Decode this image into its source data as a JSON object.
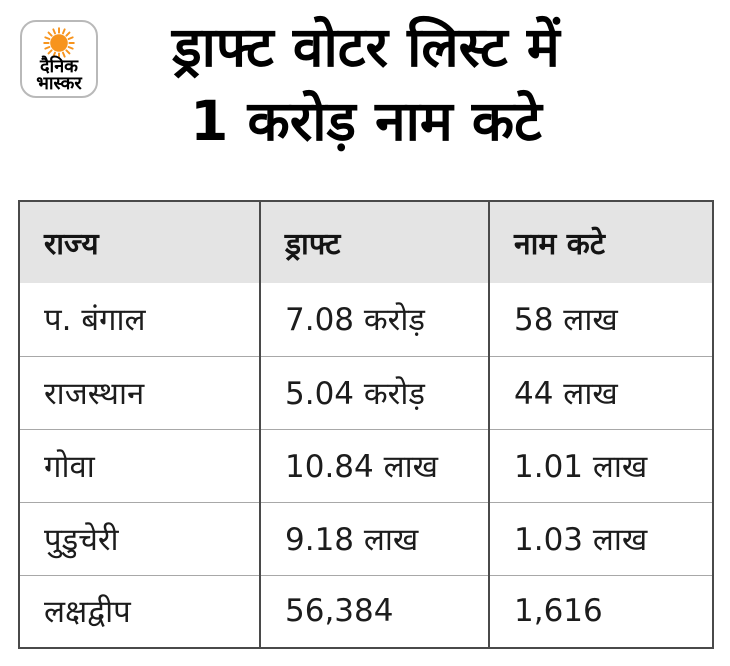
{
  "brand": {
    "logo_text_line1": "दैनिक",
    "logo_text_line2": "भास्कर"
  },
  "title": {
    "line1": "ड्राफ्ट वोटर लिस्ट में",
    "line2": "1 करोड़ नाम कटे"
  },
  "chart_data": {
    "type": "table",
    "title": "ड्राफ्ट वोटर लिस्ट में 1 करोड़ नाम कटे",
    "columns": [
      "राज्य",
      "ड्राफ्ट",
      "नाम कटे"
    ],
    "rows": [
      [
        "प. बंगाल",
        "7.08 करोड़",
        "58 लाख"
      ],
      [
        "राजस्थान",
        "5.04 करोड़",
        "44 लाख"
      ],
      [
        "गोवा",
        "10.84 लाख",
        "1.01 लाख"
      ],
      [
        "पुडुचेरी",
        "9.18 लाख",
        "1.03 लाख"
      ],
      [
        "लक्षद्वीप",
        "56,384",
        "1,616"
      ]
    ]
  },
  "colors": {
    "header_bg": "#e4e4e4",
    "grid_dark": "#4a4a4a",
    "grid_light": "#a8a8a8",
    "text": "#111111",
    "sun_orange": "#F7941D"
  }
}
